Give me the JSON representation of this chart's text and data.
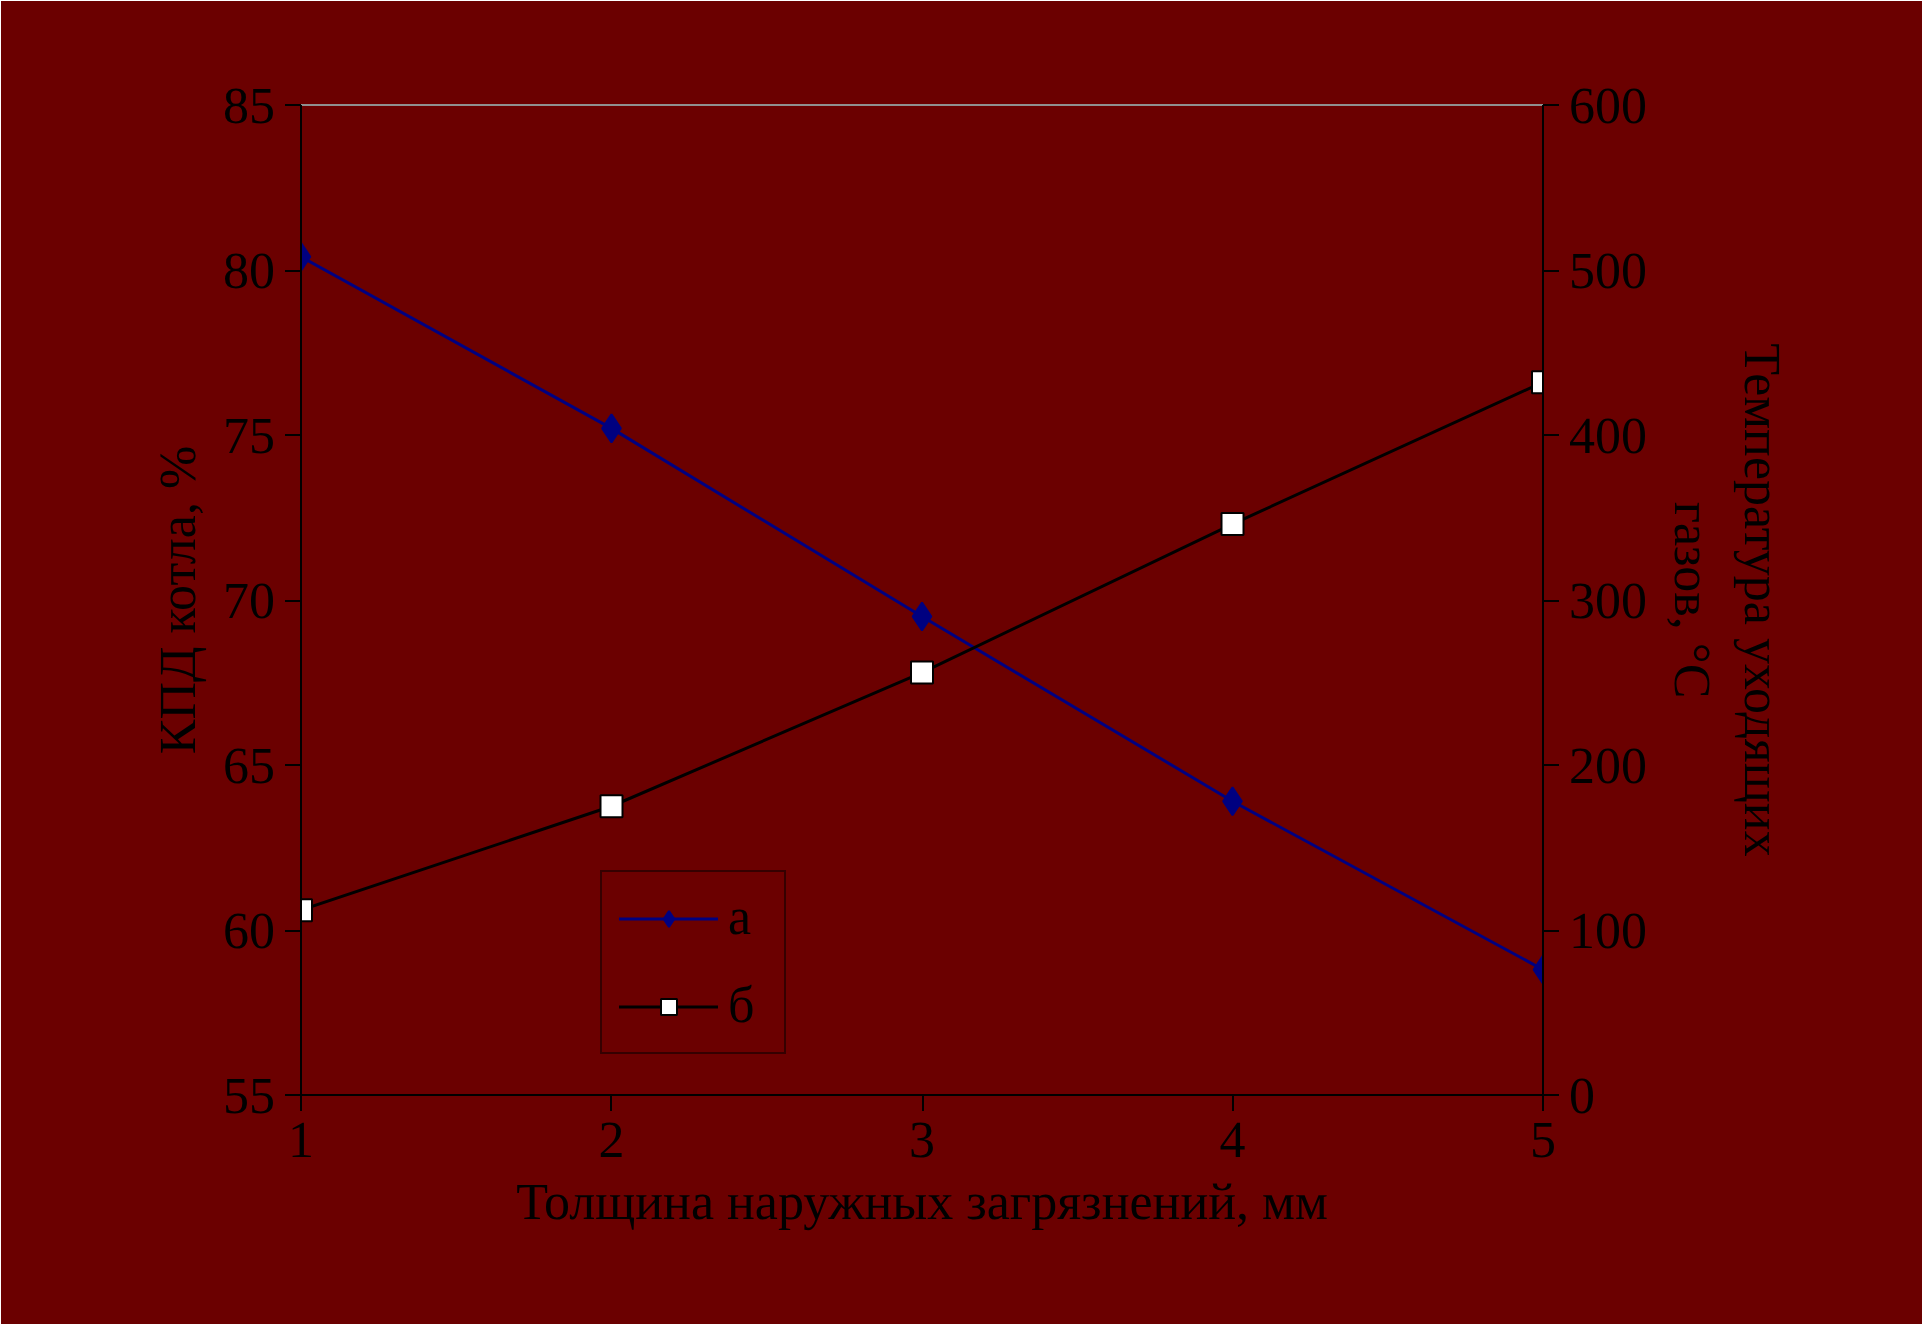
{
  "chart_data": {
    "type": "line",
    "xlabel": "Толщина наружных загрязнений, мм",
    "ylabel": "КПД котла, %",
    "y2label": "Температура уходящих газов, °C",
    "x": [
      1,
      2,
      3,
      4,
      5
    ],
    "xlim": [
      1,
      5
    ],
    "xticks": [
      1,
      2,
      3,
      4,
      5
    ],
    "ylim": [
      55,
      85
    ],
    "yticks": [
      55,
      60,
      65,
      70,
      75,
      80,
      85
    ],
    "y2lim": [
      0,
      600
    ],
    "y2ticks": [
      0,
      100,
      200,
      300,
      400,
      500,
      600
    ],
    "series": [
      {
        "name": "а",
        "color": "#000080",
        "marker": "diamond",
        "values": [
          80.4,
          75.2,
          69.5,
          63.9,
          58.8
        ]
      },
      {
        "name": "б",
        "color": "#000000",
        "marker": "square",
        "axis": "y2",
        "values": [
          112,
          175,
          256,
          346,
          432
        ]
      }
    ],
    "grid": false,
    "legend": "bottom left",
    "line_style": "solid"
  }
}
